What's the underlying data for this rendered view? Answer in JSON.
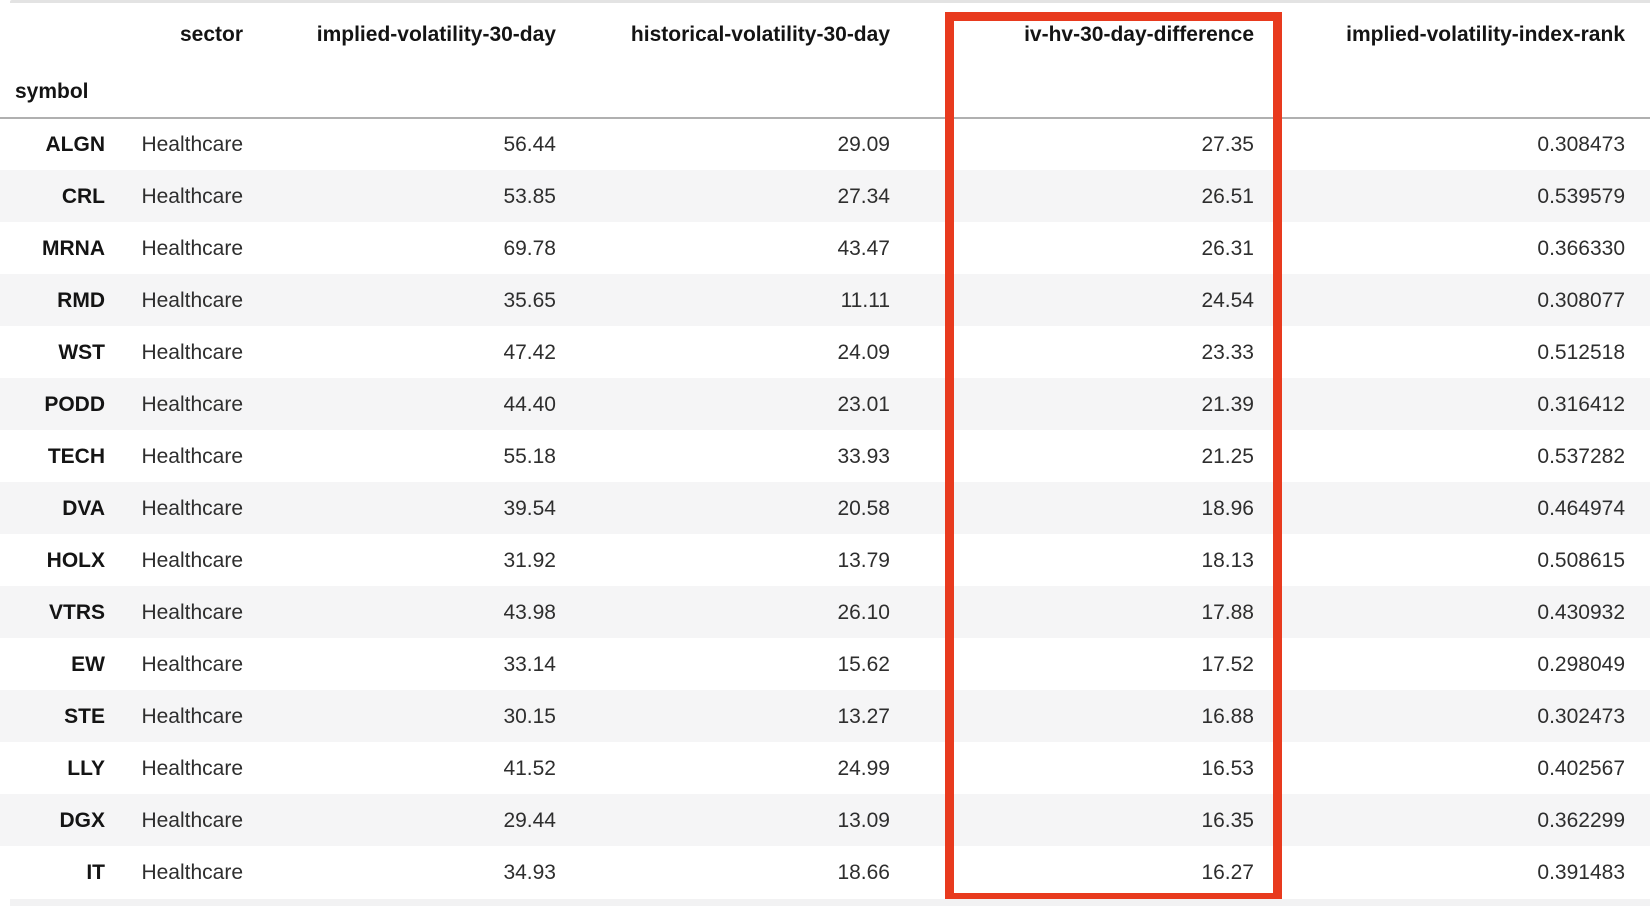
{
  "table": {
    "index_label": "symbol",
    "columns": [
      "sector",
      "implied-volatility-30-day",
      "historical-volatility-30-day",
      "iv-hv-30-day-difference",
      "implied-volatility-index-rank"
    ],
    "highlighted_column": "iv-hv-30-day-difference",
    "rows": [
      {
        "symbol": "ALGN",
        "sector": "Healthcare",
        "iv30": "56.44",
        "hv30": "29.09",
        "diff": "27.35",
        "rank": "0.308473"
      },
      {
        "symbol": "CRL",
        "sector": "Healthcare",
        "iv30": "53.85",
        "hv30": "27.34",
        "diff": "26.51",
        "rank": "0.539579"
      },
      {
        "symbol": "MRNA",
        "sector": "Healthcare",
        "iv30": "69.78",
        "hv30": "43.47",
        "diff": "26.31",
        "rank": "0.366330"
      },
      {
        "symbol": "RMD",
        "sector": "Healthcare",
        "iv30": "35.65",
        "hv30": "11.11",
        "diff": "24.54",
        "rank": "0.308077"
      },
      {
        "symbol": "WST",
        "sector": "Healthcare",
        "iv30": "47.42",
        "hv30": "24.09",
        "diff": "23.33",
        "rank": "0.512518"
      },
      {
        "symbol": "PODD",
        "sector": "Healthcare",
        "iv30": "44.40",
        "hv30": "23.01",
        "diff": "21.39",
        "rank": "0.316412"
      },
      {
        "symbol": "TECH",
        "sector": "Healthcare",
        "iv30": "55.18",
        "hv30": "33.93",
        "diff": "21.25",
        "rank": "0.537282"
      },
      {
        "symbol": "DVA",
        "sector": "Healthcare",
        "iv30": "39.54",
        "hv30": "20.58",
        "diff": "18.96",
        "rank": "0.464974"
      },
      {
        "symbol": "HOLX",
        "sector": "Healthcare",
        "iv30": "31.92",
        "hv30": "13.79",
        "diff": "18.13",
        "rank": "0.508615"
      },
      {
        "symbol": "VTRS",
        "sector": "Healthcare",
        "iv30": "43.98",
        "hv30": "26.10",
        "diff": "17.88",
        "rank": "0.430932"
      },
      {
        "symbol": "EW",
        "sector": "Healthcare",
        "iv30": "33.14",
        "hv30": "15.62",
        "diff": "17.52",
        "rank": "0.298049"
      },
      {
        "symbol": "STE",
        "sector": "Healthcare",
        "iv30": "30.15",
        "hv30": "13.27",
        "diff": "16.88",
        "rank": "0.302473"
      },
      {
        "symbol": "LLY",
        "sector": "Healthcare",
        "iv30": "41.52",
        "hv30": "24.99",
        "diff": "16.53",
        "rank": "0.402567"
      },
      {
        "symbol": "DGX",
        "sector": "Healthcare",
        "iv30": "29.44",
        "hv30": "13.09",
        "diff": "16.35",
        "rank": "0.362299"
      },
      {
        "symbol": "IT",
        "sector": "Healthcare",
        "iv30": "34.93",
        "hv30": "18.66",
        "diff": "16.27",
        "rank": "0.391483"
      }
    ]
  },
  "colors": {
    "highlight_border": "#e83a1e",
    "row_stripe": "#f5f5f6",
    "header_border": "#b0b0b0",
    "top_edge": "#e3e3e3",
    "bottom_edge": "#f2f2f3"
  }
}
